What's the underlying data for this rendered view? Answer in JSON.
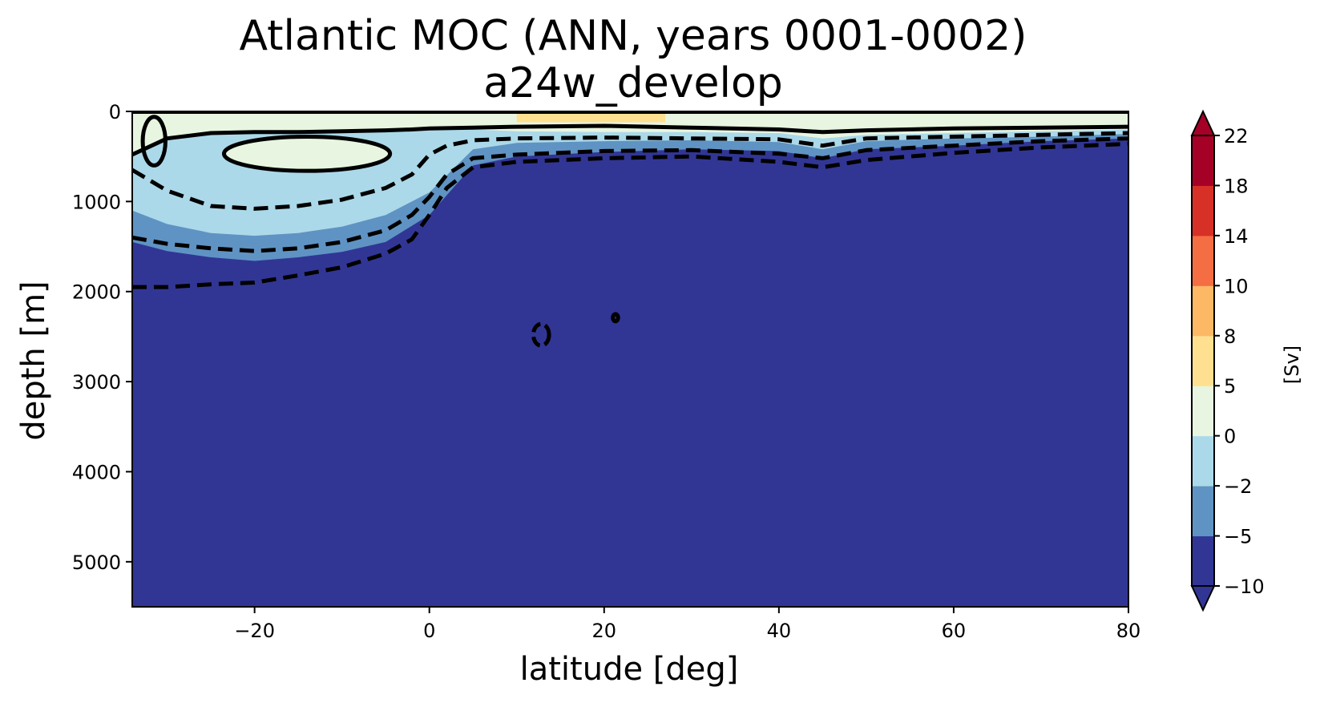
{
  "chart_data": {
    "type": "contour",
    "title": "Atlantic MOC (ANN, years 0001-0002)",
    "subtitle": "a24w_develop",
    "xlabel": "latitude [deg]",
    "ylabel": "depth [m]",
    "xlim": [
      -34,
      80
    ],
    "ylim": [
      5500,
      0
    ],
    "x_ticks": [
      -20,
      0,
      20,
      40,
      60,
      80
    ],
    "x_tick_labels": [
      "−20",
      "0",
      "20",
      "40",
      "60",
      "80"
    ],
    "y_ticks": [
      0,
      1000,
      2000,
      3000,
      4000,
      5000
    ],
    "y_tick_labels": [
      "0",
      "1000",
      "2000",
      "3000",
      "4000",
      "5000"
    ],
    "grid": false,
    "colorbar": {
      "label": "[Sv]",
      "levels": [
        -10,
        -5,
        -2,
        0,
        5,
        8,
        10,
        14,
        18,
        22
      ],
      "level_labels": [
        "−10",
        "−5",
        "−2",
        "0",
        "5",
        "8",
        "10",
        "14",
        "18",
        "22"
      ],
      "colors": [
        "#313695",
        "#5f93c3",
        "#abd9e9",
        "#e8f5e0",
        "#fee090",
        "#fdb865",
        "#f46d43",
        "#d73027",
        "#a50026"
      ],
      "extend": "both",
      "under_color": "#313695",
      "over_color": "#a50026"
    },
    "regions": [
      {
        "name": "negative-shallow-cell",
        "band_upper_bounds_lat": [
          -34,
          -30,
          -25,
          -20,
          -15,
          -10,
          -5,
          0,
          5,
          10,
          20,
          30,
          40,
          45,
          50,
          60,
          70,
          80
        ],
        "depth_of_minus10_band_top": [
          1450,
          1550,
          1620,
          1660,
          1620,
          1560,
          1450,
          1150,
          600,
          500,
          450,
          420,
          440,
          520,
          420,
          380,
          330,
          300
        ],
        "depth_of_minus5_band_top": [
          1100,
          1250,
          1350,
          1380,
          1350,
          1280,
          1150,
          900,
          420,
          350,
          330,
          320,
          340,
          420,
          330,
          300,
          280,
          250
        ],
        "depth_of_minus2_band_top": [
          450,
          300,
          230,
          210,
          210,
          200,
          200,
          200,
          200,
          220,
          230,
          230,
          240,
          300,
          260,
          240,
          220,
          200
        ]
      }
    ],
    "contours": [
      {
        "style": "dashed",
        "label": "-2",
        "lat": [
          -34,
          -30,
          -25,
          -20,
          -15,
          -10,
          -5,
          -2,
          0,
          2,
          5,
          10,
          20,
          30,
          40,
          45,
          50,
          60,
          70,
          80
        ],
        "depth": [
          650,
          880,
          1050,
          1080,
          1050,
          980,
          850,
          700,
          480,
          380,
          320,
          300,
          290,
          300,
          310,
          380,
          300,
          280,
          260,
          240
        ]
      },
      {
        "style": "dashed",
        "label": "-5",
        "lat": [
          -34,
          -30,
          -25,
          -20,
          -15,
          -10,
          -5,
          -2,
          0,
          2,
          5,
          10,
          20,
          30,
          40,
          45,
          50,
          60,
          70,
          80
        ],
        "depth": [
          1400,
          1470,
          1520,
          1550,
          1520,
          1450,
          1320,
          1150,
          950,
          700,
          520,
          480,
          440,
          430,
          470,
          520,
          430,
          380,
          330,
          300
        ]
      },
      {
        "style": "dashed",
        "label": "-10",
        "lat": [
          -34,
          -30,
          -25,
          -20,
          -15,
          -10,
          -5,
          -2,
          0,
          2,
          5,
          10,
          20,
          30,
          40,
          45,
          50,
          60,
          70,
          80
        ],
        "depth": [
          1950,
          1950,
          1920,
          1900,
          1820,
          1730,
          1580,
          1420,
          1150,
          850,
          620,
          560,
          520,
          500,
          560,
          620,
          540,
          460,
          400,
          360
        ]
      },
      {
        "style": "solid",
        "label": "0",
        "lat": [
          -34,
          -30,
          -25,
          -20,
          -15,
          -10,
          -5,
          -2,
          0,
          5,
          10,
          20,
          30,
          40,
          45,
          50,
          60,
          70,
          80
        ],
        "depth": [
          480,
          300,
          240,
          230,
          230,
          220,
          210,
          200,
          190,
          180,
          170,
          160,
          180,
          200,
          230,
          210,
          190,
          180,
          170
        ]
      }
    ],
    "closed_contours": [
      {
        "style": "solid",
        "label": "0",
        "center_lat": -14,
        "center_depth": 470,
        "half_width_lat": 9.5,
        "half_height_depth": 190
      },
      {
        "style": "solid",
        "label": "0",
        "center_lat": -31.5,
        "center_depth": 330,
        "half_width_lat": 1.3,
        "half_height_depth": 270
      },
      {
        "style": "dashed",
        "label": "-10",
        "center_lat": 12.8,
        "center_depth": 2480,
        "half_width_lat": 0.9,
        "half_height_depth": 120
      },
      {
        "style": "solid",
        "label": "0",
        "center_lat": 21.3,
        "center_depth": 2290,
        "half_width_lat": 0.3,
        "half_height_depth": 40
      }
    ],
    "surface_max_positive": {
      "lat_range": [
        10,
        27
      ],
      "depth_range": [
        0,
        120
      ],
      "value_band": "5 to 8"
    }
  }
}
